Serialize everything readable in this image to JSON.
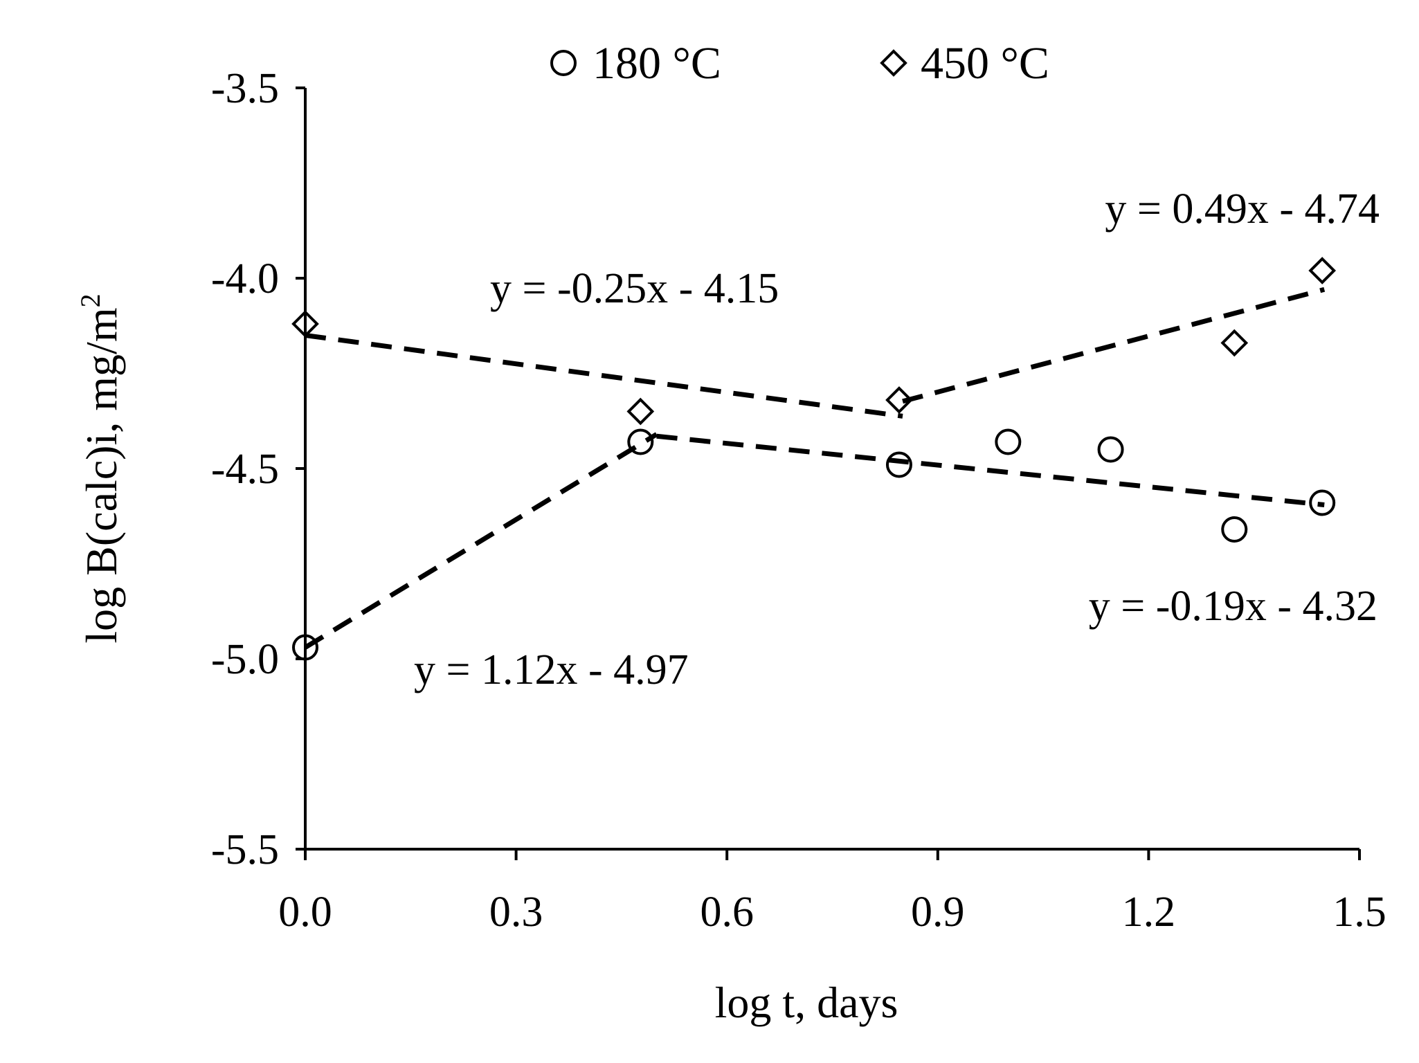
{
  "chart_data": {
    "type": "scatter",
    "title": "",
    "xlabel": "log t, days",
    "ylabel_main": "log B(calc)i, mg/m",
    "ylabel_sup": "2",
    "xlim": [
      0,
      1.5
    ],
    "ylim": [
      -5.5,
      -3.5
    ],
    "x_ticks": [
      0.0,
      0.3,
      0.6,
      0.9,
      1.2,
      1.5
    ],
    "x_tick_labels": [
      "0.0",
      "0.3",
      "0.6",
      "0.9",
      "1.2",
      "1.5"
    ],
    "y_ticks": [
      -3.5,
      -4.0,
      -4.5,
      -5.0,
      -5.5
    ],
    "y_tick_labels": [
      "-3.5",
      "-4.0",
      "-4.5",
      "-5.0",
      "-5.5"
    ],
    "grid": false,
    "legend_position": "top-center",
    "series": [
      {
        "name": "180 °C",
        "marker": "circle",
        "x": [
          0.0,
          0.477,
          0.845,
          1.0,
          1.146,
          1.322,
          1.447
        ],
        "y": [
          -4.97,
          -4.43,
          -4.49,
          -4.43,
          -4.45,
          -4.66,
          -4.59
        ]
      },
      {
        "name": "450 °C",
        "marker": "diamond",
        "x": [
          0.0,
          0.477,
          0.845,
          1.322,
          1.447
        ],
        "y": [
          -4.12,
          -4.35,
          -4.32,
          -4.17,
          -3.98
        ]
      }
    ],
    "trendlines": [
      {
        "x_range": [
          0.0,
          0.5
        ],
        "slope": 1.12,
        "intercept": -4.97,
        "label": "y = 1.12x - 4.97",
        "label_anchor": "lower-left"
      },
      {
        "x_range": [
          0.5,
          1.45
        ],
        "slope": -0.19,
        "intercept": -4.32,
        "label": "y = -0.19x - 4.32",
        "label_anchor": "lower-right"
      },
      {
        "x_range": [
          0.0,
          0.85
        ],
        "slope": -0.25,
        "intercept": -4.15,
        "label": "y = -0.25x - 4.15",
        "label_anchor": "upper-left"
      },
      {
        "x_range": [
          0.85,
          1.45
        ],
        "slope": 0.49,
        "intercept": -4.74,
        "label": "y = 0.49x - 4.74",
        "label_anchor": "upper-right"
      }
    ]
  }
}
